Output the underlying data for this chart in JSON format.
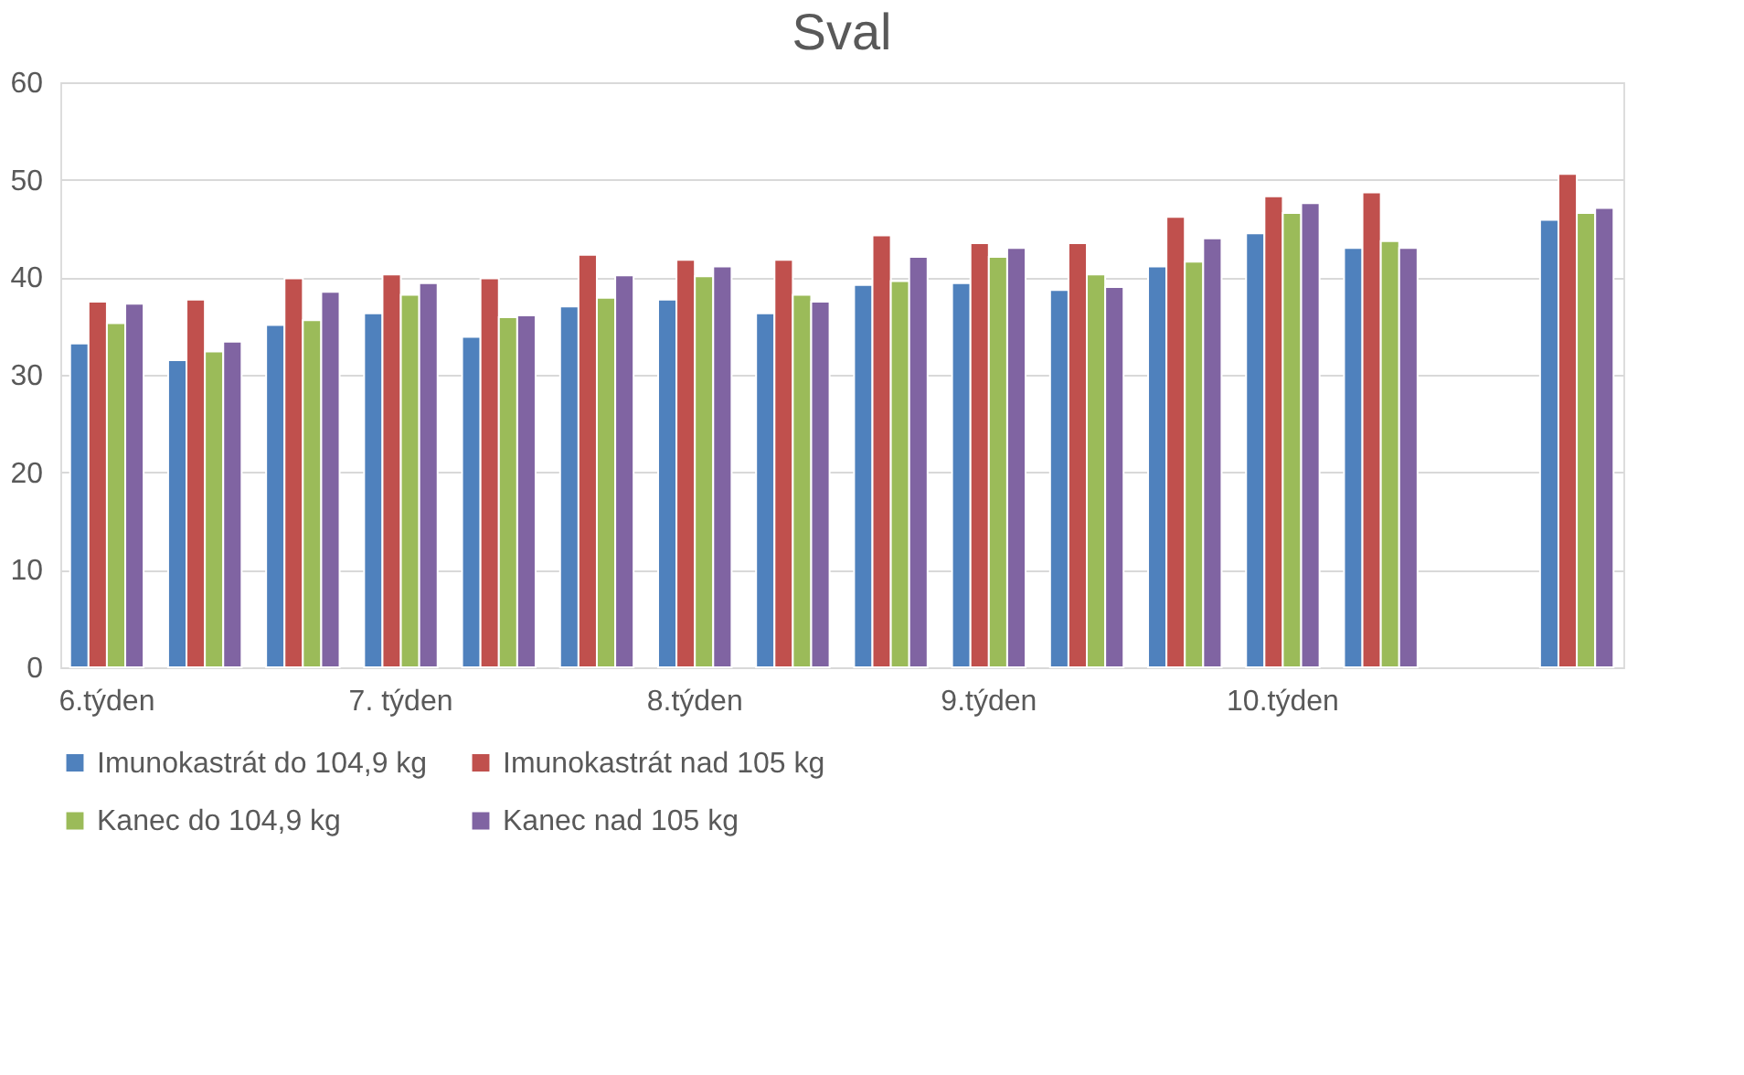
{
  "chart_data": {
    "type": "bar",
    "title": "Sval",
    "categories": [
      "6.týden",
      null,
      null,
      "7. týden",
      null,
      null,
      "8.týden",
      null,
      null,
      "9.týden",
      null,
      null,
      "10.týden",
      null,
      null,
      null
    ],
    "series": [
      {
        "name": "Imunokastrát do 104,9 kg",
        "color": "#4f81bd",
        "values": [
          33.2,
          31.5,
          35.1,
          36.3,
          33.9,
          37.0,
          37.7,
          36.3,
          39.2,
          39.4,
          38.7,
          41.1,
          44.5,
          43.0,
          null,
          45.9
        ]
      },
      {
        "name": "Imunokastrát nad 105 kg",
        "color": "#c0504d",
        "values": [
          37.5,
          37.7,
          39.9,
          40.3,
          39.9,
          42.3,
          41.8,
          41.8,
          44.3,
          43.5,
          43.5,
          46.2,
          48.3,
          48.7,
          null,
          50.6
        ]
      },
      {
        "name": "Kanec do 104,9 kg",
        "color": "#9bbb59",
        "values": [
          35.3,
          32.4,
          35.6,
          38.2,
          35.9,
          37.9,
          40.1,
          38.2,
          39.6,
          42.1,
          40.3,
          41.6,
          46.6,
          43.7,
          null,
          46.6
        ]
      },
      {
        "name": "Kanec nad 105 kg",
        "color": "#8064a2",
        "values": [
          37.3,
          33.4,
          38.5,
          39.4,
          36.1,
          40.2,
          41.1,
          37.5,
          42.1,
          43.0,
          39.0,
          44.0,
          47.6,
          43.0,
          null,
          47.1
        ]
      }
    ],
    "ylim": [
      0,
      60
    ],
    "yticks": [
      0,
      10,
      20,
      30,
      40,
      50,
      60
    ],
    "grid": "y",
    "legend": "bottom"
  }
}
